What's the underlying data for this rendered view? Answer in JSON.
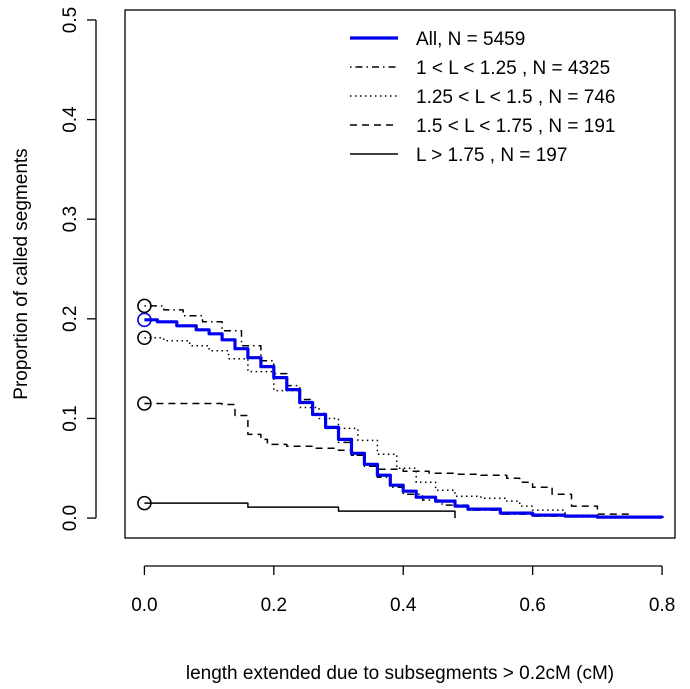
{
  "chart_data": {
    "type": "line",
    "xlabel": "length extended due to subsegments > 0.2cM (cM)",
    "ylabel": "Proportion of called segments",
    "xlim": [
      -0.03,
      0.82
    ],
    "ylim": [
      -0.02,
      0.51
    ],
    "x_ticks": [
      "0.0",
      "0.2",
      "0.4",
      "0.6",
      "0.8"
    ],
    "y_ticks": [
      "0.0",
      "0.1",
      "0.2",
      "0.3",
      "0.4",
      "0.5"
    ],
    "grid": false,
    "legend_position": "top-right",
    "series": [
      {
        "name": "All, N = 5459",
        "color": "#0000ee",
        "style": "solid-thick",
        "start_point": [
          0.0,
          0.199
        ],
        "points": [
          [
            0.0,
            0.199
          ],
          [
            0.02,
            0.197
          ],
          [
            0.05,
            0.193
          ],
          [
            0.08,
            0.189
          ],
          [
            0.1,
            0.185
          ],
          [
            0.12,
            0.179
          ],
          [
            0.14,
            0.17
          ],
          [
            0.16,
            0.161
          ],
          [
            0.18,
            0.152
          ],
          [
            0.2,
            0.141
          ],
          [
            0.22,
            0.129
          ],
          [
            0.24,
            0.116
          ],
          [
            0.26,
            0.104
          ],
          [
            0.28,
            0.091
          ],
          [
            0.3,
            0.079
          ],
          [
            0.32,
            0.065
          ],
          [
            0.34,
            0.054
          ],
          [
            0.36,
            0.043
          ],
          [
            0.38,
            0.033
          ],
          [
            0.4,
            0.027
          ],
          [
            0.42,
            0.021
          ],
          [
            0.45,
            0.017
          ],
          [
            0.48,
            0.012
          ],
          [
            0.5,
            0.009
          ],
          [
            0.55,
            0.005
          ],
          [
            0.6,
            0.003
          ],
          [
            0.65,
            0.002
          ],
          [
            0.7,
            0.001
          ],
          [
            0.75,
            0.001
          ],
          [
            0.8,
            0.0
          ]
        ]
      },
      {
        "name": "1 < L < 1.25 , N = 4325",
        "color": "#000000",
        "style": "dotdash",
        "start_point": [
          0.0,
          0.213
        ],
        "points": [
          [
            0.0,
            0.213
          ],
          [
            0.03,
            0.209
          ],
          [
            0.06,
            0.203
          ],
          [
            0.09,
            0.197
          ],
          [
            0.12,
            0.188
          ],
          [
            0.15,
            0.173
          ],
          [
            0.18,
            0.158
          ],
          [
            0.2,
            0.145
          ],
          [
            0.22,
            0.133
          ],
          [
            0.24,
            0.119
          ],
          [
            0.26,
            0.105
          ],
          [
            0.28,
            0.09
          ],
          [
            0.3,
            0.076
          ],
          [
            0.32,
            0.063
          ],
          [
            0.34,
            0.052
          ],
          [
            0.36,
            0.041
          ],
          [
            0.38,
            0.031
          ],
          [
            0.4,
            0.024
          ],
          [
            0.43,
            0.018
          ],
          [
            0.46,
            0.013
          ],
          [
            0.5,
            0.008
          ],
          [
            0.55,
            0.004
          ],
          [
            0.6,
            0.002
          ],
          [
            0.7,
            0.001
          ],
          [
            0.8,
            0.0
          ]
        ]
      },
      {
        "name": "1.25 < L < 1.5 , N = 746",
        "color": "#000000",
        "style": "dotted",
        "start_point": [
          0.0,
          0.181
        ],
        "points": [
          [
            0.0,
            0.181
          ],
          [
            0.03,
            0.178
          ],
          [
            0.07,
            0.173
          ],
          [
            0.1,
            0.168
          ],
          [
            0.13,
            0.16
          ],
          [
            0.16,
            0.147
          ],
          [
            0.2,
            0.128
          ],
          [
            0.24,
            0.111
          ],
          [
            0.27,
            0.1
          ],
          [
            0.3,
            0.09
          ],
          [
            0.33,
            0.078
          ],
          [
            0.36,
            0.064
          ],
          [
            0.39,
            0.05
          ],
          [
            0.42,
            0.036
          ],
          [
            0.45,
            0.028
          ],
          [
            0.48,
            0.022
          ],
          [
            0.52,
            0.02
          ],
          [
            0.56,
            0.017
          ],
          [
            0.58,
            0.012
          ],
          [
            0.6,
            0.008
          ],
          [
            0.65,
            0.003
          ],
          [
            0.7,
            0.001
          ],
          [
            0.8,
            0.0
          ]
        ]
      },
      {
        "name": "1.5 < L < 1.75 , N = 191",
        "color": "#000000",
        "style": "dashed",
        "start_point": [
          0.0,
          0.115
        ],
        "points": [
          [
            0.0,
            0.115
          ],
          [
            0.05,
            0.115
          ],
          [
            0.12,
            0.114
          ],
          [
            0.14,
            0.103
          ],
          [
            0.16,
            0.084
          ],
          [
            0.18,
            0.079
          ],
          [
            0.19,
            0.074
          ],
          [
            0.22,
            0.072
          ],
          [
            0.26,
            0.07
          ],
          [
            0.3,
            0.068
          ],
          [
            0.32,
            0.063
          ],
          [
            0.34,
            0.054
          ],
          [
            0.36,
            0.049
          ],
          [
            0.4,
            0.047
          ],
          [
            0.44,
            0.045
          ],
          [
            0.48,
            0.044
          ],
          [
            0.52,
            0.043
          ],
          [
            0.56,
            0.04
          ],
          [
            0.58,
            0.036
          ],
          [
            0.6,
            0.031
          ],
          [
            0.63,
            0.024
          ],
          [
            0.66,
            0.012
          ],
          [
            0.7,
            0.004
          ],
          [
            0.75,
            0.001
          ],
          [
            0.8,
            0.0
          ]
        ]
      },
      {
        "name": "L > 1.75 , N = 197",
        "color": "#000000",
        "style": "solid-thin",
        "start_point": [
          0.0,
          0.015
        ],
        "points": [
          [
            0.0,
            0.015
          ],
          [
            0.15,
            0.015
          ],
          [
            0.16,
            0.011
          ],
          [
            0.3,
            0.007
          ],
          [
            0.48,
            0.0
          ]
        ]
      }
    ]
  }
}
